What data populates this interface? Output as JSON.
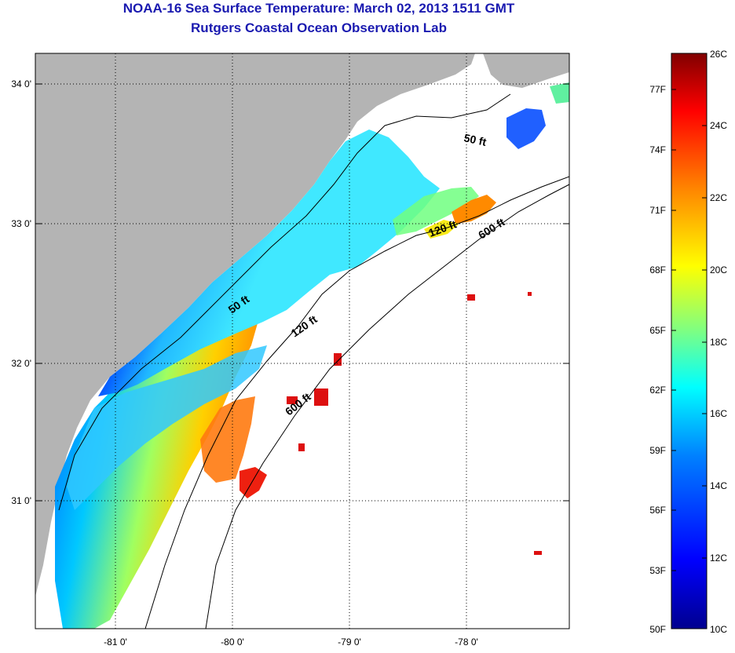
{
  "header": {
    "title": "NOAA-16 Sea Surface Temperature:  March 02, 2013 1511 GMT",
    "subtitle": "Rutgers Coastal Ocean Observation Lab"
  },
  "map": {
    "lat_ticks": [
      "34 0'",
      "33 0'",
      "32 0'",
      "31 0'"
    ],
    "lon_ticks": [
      "-81 0'",
      "-80 0'",
      "-79 0'",
      "-78 0'"
    ],
    "contour_labels": [
      "50 ft",
      "120 ft",
      "600 ft",
      "50 ft",
      "120 ft",
      "600 ft"
    ],
    "colors": {
      "land": "#b4b4b4",
      "ocean_clear": "#ffffff",
      "grid": "#000000"
    }
  },
  "colorbar": {
    "f_labels": [
      "77F",
      "74F",
      "71F",
      "68F",
      "65F",
      "62F",
      "59F",
      "56F",
      "53F",
      "50F"
    ],
    "c_labels": [
      "26C",
      "24C",
      "22C",
      "20C",
      "18C",
      "16C",
      "14C",
      "12C",
      "10C"
    ],
    "colors": [
      "#00008f",
      "#0000ff",
      "#0080ff",
      "#00ffff",
      "#80ff80",
      "#ffff00",
      "#ff8000",
      "#ff0000",
      "#800000"
    ]
  }
}
